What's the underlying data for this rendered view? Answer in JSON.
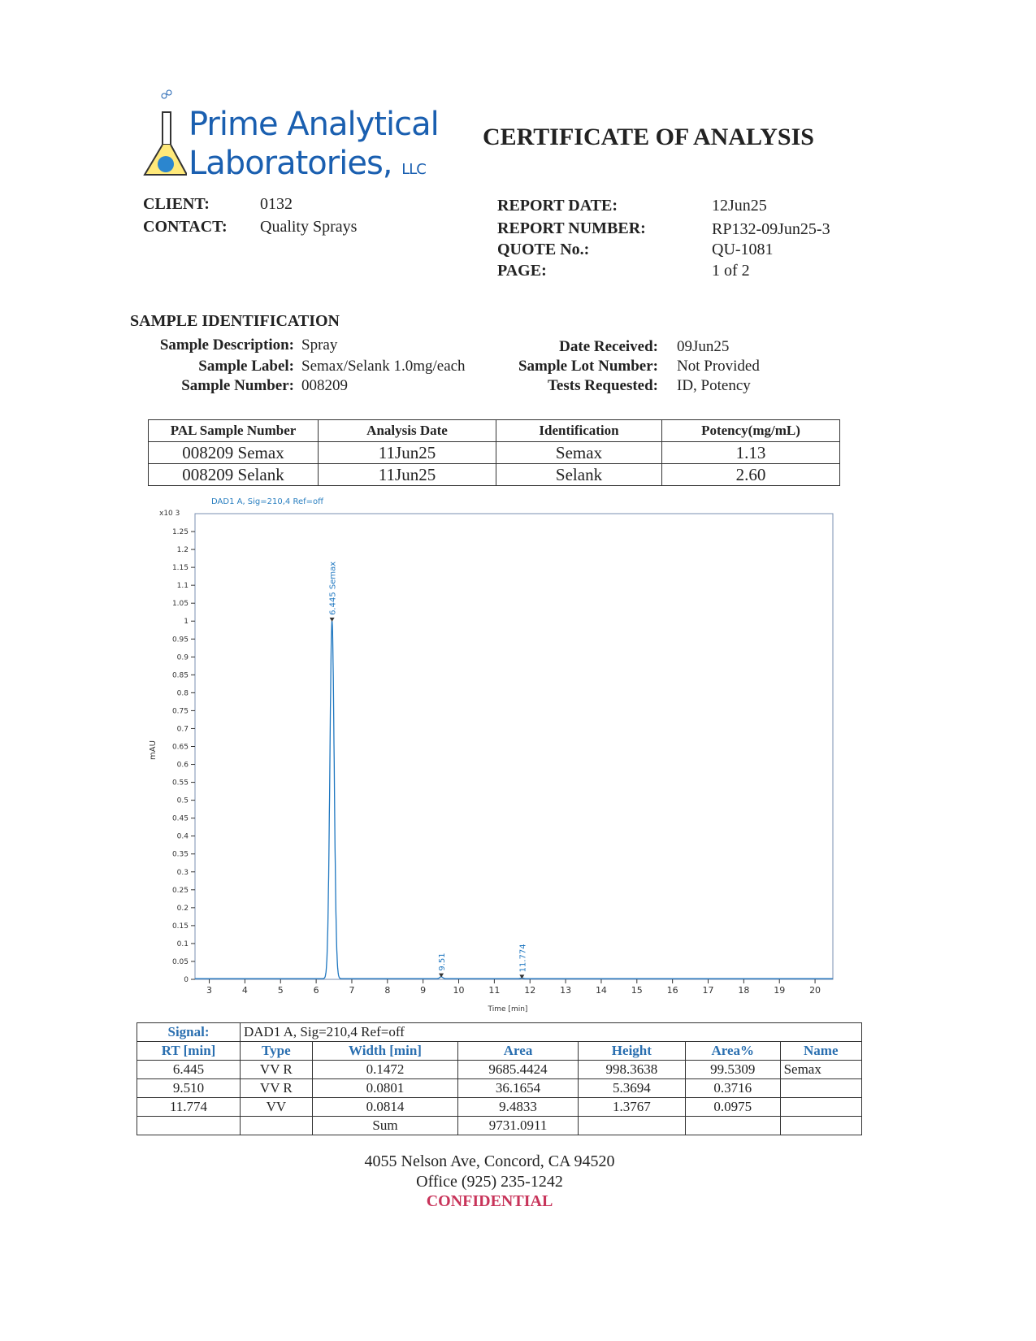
{
  "logo": {
    "line1": "Prime Analytical",
    "line2": "Laboratories,",
    "suffix": "LLC"
  },
  "title": "CERTIFICATE OF ANALYSIS",
  "client": {
    "client_label": "CLIENT:",
    "client": "0132",
    "contact_label": "CONTACT:",
    "contact": "Quality Sprays"
  },
  "report": {
    "date_label": "REPORT DATE:",
    "date": "12Jun25",
    "number_label": "REPORT NUMBER:",
    "number": "RP132-09Jun25-3",
    "quote_label": "QUOTE No.:",
    "quote": "QU-1081",
    "page_label": "PAGE:",
    "page": "1 of 2"
  },
  "sample": {
    "heading": "SAMPLE IDENTIFICATION",
    "desc_label": "Sample Description:",
    "desc": "Spray",
    "label_label": "Sample Label:",
    "label": "Semax/Selank 1.0mg/each",
    "number_label": "Sample Number:",
    "number": "008209",
    "received_label": "Date Received:",
    "received": "09Jun25",
    "lot_label": "Sample Lot Number:",
    "lot": "Not Provided",
    "tests_label": "Tests Requested:",
    "tests": "ID, Potency"
  },
  "results": {
    "headers": [
      "PAL Sample Number",
      "Analysis Date",
      "Identification",
      "Potency(mg/mL)"
    ],
    "rows": [
      [
        "008209 Semax",
        "11Jun25",
        "Semax",
        "1.13"
      ],
      [
        "008209 Selank",
        "11Jun25",
        "Selank",
        "2.60"
      ]
    ]
  },
  "chart_data": {
    "type": "line",
    "title": "DAD1 A, Sig=210,4 Ref=off",
    "xlabel": "Time [min]",
    "ylabel": "mAU",
    "y_multiplier": "x10 3",
    "xlim": [
      2.6,
      20.5
    ],
    "ylim": [
      0,
      1.3
    ],
    "xticks": [
      3,
      4,
      5,
      6,
      7,
      8,
      9,
      10,
      11,
      12,
      13,
      14,
      15,
      16,
      17,
      18,
      19,
      20
    ],
    "yticks": [
      "0",
      "0.05",
      "0.1",
      "0.15",
      "0.2",
      "0.25",
      "0.3",
      "0.35",
      "0.4",
      "0.45",
      "0.5",
      "0.55",
      "0.6",
      "0.65",
      "0.7",
      "0.75",
      "0.8",
      "0.85",
      "0.9",
      "0.95",
      "1",
      "1.05",
      "1.1",
      "1.15",
      "1.2",
      "1.25"
    ],
    "peaks": [
      {
        "rt": 6.445,
        "height": 0.9984,
        "label": "6.445 Semax"
      },
      {
        "rt": 9.51,
        "height": 0.0054,
        "label": "9.51"
      },
      {
        "rt": 11.774,
        "height": 0.0014,
        "label": "11.774"
      }
    ],
    "color": "#1f77c0",
    "grid": false
  },
  "peaks_table": {
    "signal_label": "Signal:",
    "signal": "DAD1 A, Sig=210,4 Ref=off",
    "headers": [
      "RT [min]",
      "Type",
      "Width [min]",
      "Area",
      "Height",
      "Area%",
      "Name"
    ],
    "rows": [
      [
        "6.445",
        "VV R",
        "0.1472",
        "9685.4424",
        "998.3638",
        "99.5309",
        "Semax"
      ],
      [
        "9.510",
        "VV R",
        "0.0801",
        "36.1654",
        "5.3694",
        "0.3716",
        ""
      ],
      [
        "11.774",
        "VV",
        "0.0814",
        "9.4833",
        "1.3767",
        "0.0975",
        ""
      ],
      [
        "",
        "",
        "Sum",
        "9731.0911",
        "",
        "",
        ""
      ]
    ]
  },
  "footer": {
    "address": "4055 Nelson Ave, Concord, CA 94520",
    "phone": "Office (925) 235-1242",
    "confidential": "CONFIDENTIAL"
  }
}
